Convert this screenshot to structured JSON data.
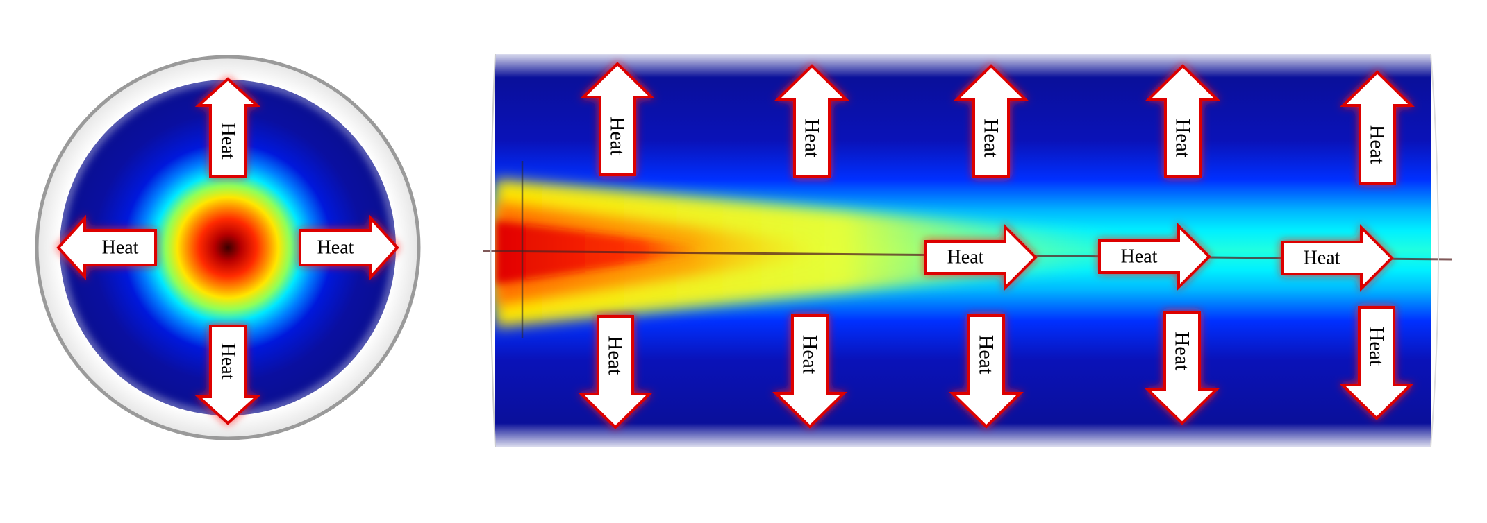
{
  "arrow_label": "Heat",
  "colors": {
    "field_low": "#0a0f8f",
    "field_mid": "#00e8ff",
    "field_warm": "#ffe600",
    "field_hot": "#e00000",
    "arrow_fill": "#ffffff",
    "arrow_stroke": "#dd0000",
    "arrow_glow": "#ff2020"
  },
  "cross_section": {
    "arrows": [
      {
        "name": "cross-heat-arrow-up",
        "direction": "up"
      },
      {
        "name": "cross-heat-arrow-left",
        "direction": "left"
      },
      {
        "name": "cross-heat-arrow-right",
        "direction": "right"
      },
      {
        "name": "cross-heat-arrow-down",
        "direction": "down"
      }
    ]
  },
  "longitudinal_section": {
    "top_arrows": [
      {
        "name": "long-heat-arrow-up-1",
        "direction": "up"
      },
      {
        "name": "long-heat-arrow-up-2",
        "direction": "up"
      },
      {
        "name": "long-heat-arrow-up-3",
        "direction": "up"
      },
      {
        "name": "long-heat-arrow-up-4",
        "direction": "up"
      },
      {
        "name": "long-heat-arrow-up-5",
        "direction": "up"
      }
    ],
    "axial_arrows": [
      {
        "name": "long-heat-arrow-axial-1",
        "direction": "right"
      },
      {
        "name": "long-heat-arrow-axial-2",
        "direction": "right"
      },
      {
        "name": "long-heat-arrow-axial-3",
        "direction": "right"
      }
    ],
    "bottom_arrows": [
      {
        "name": "long-heat-arrow-down-1",
        "direction": "down"
      },
      {
        "name": "long-heat-arrow-down-2",
        "direction": "down"
      },
      {
        "name": "long-heat-arrow-down-3",
        "direction": "down"
      },
      {
        "name": "long-heat-arrow-down-4",
        "direction": "down"
      },
      {
        "name": "long-heat-arrow-down-5",
        "direction": "down"
      }
    ]
  }
}
